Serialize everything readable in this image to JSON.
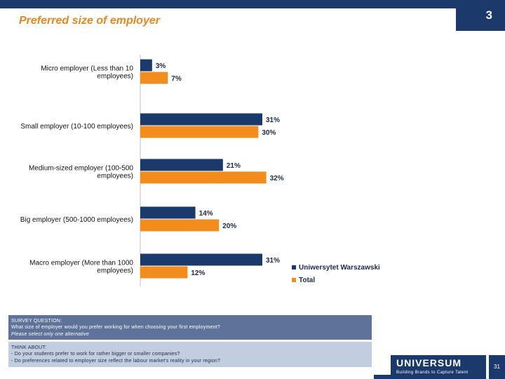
{
  "header": {
    "title": "Preferred size of employer",
    "section_number": "3"
  },
  "chart_data": {
    "type": "bar",
    "orientation": "horizontal",
    "categories": [
      [
        "Micro employer (Less than 10",
        "employees)"
      ],
      [
        "Small employer (10-100 employees)"
      ],
      [
        "Medium-sized employer (100-500",
        "employees)"
      ],
      [
        "Big employer (500-1000 employees)"
      ],
      [
        "Macro employer (More than 1000",
        "employees)"
      ]
    ],
    "series": [
      {
        "name": "Uniwersytet Warszawski",
        "color": "#1b3a6b",
        "values": [
          3,
          31,
          21,
          14,
          31
        ]
      },
      {
        "name": "Total",
        "color": "#f28c1c",
        "values": [
          7,
          30,
          32,
          20,
          12
        ]
      }
    ],
    "value_suffix": "%",
    "xlim": [
      0,
      40
    ],
    "legend": "bottom-right"
  },
  "survey": {
    "heading": "SURVEY QUESTION:",
    "question": "What size of employer would you prefer working for when choosing your first employment?",
    "note": "Please select only one alternative"
  },
  "think_about": {
    "heading": "THINK ABOUT:",
    "items": [
      "- Do your students prefer to work for rather bigger or smaller companies?",
      "- Do preferences related to employer size reflect the labour market's reality in your region?"
    ]
  },
  "footer": {
    "logo": "UNIVERSUM",
    "tagline": "Building Brands to Capture Talent",
    "page": "31"
  }
}
